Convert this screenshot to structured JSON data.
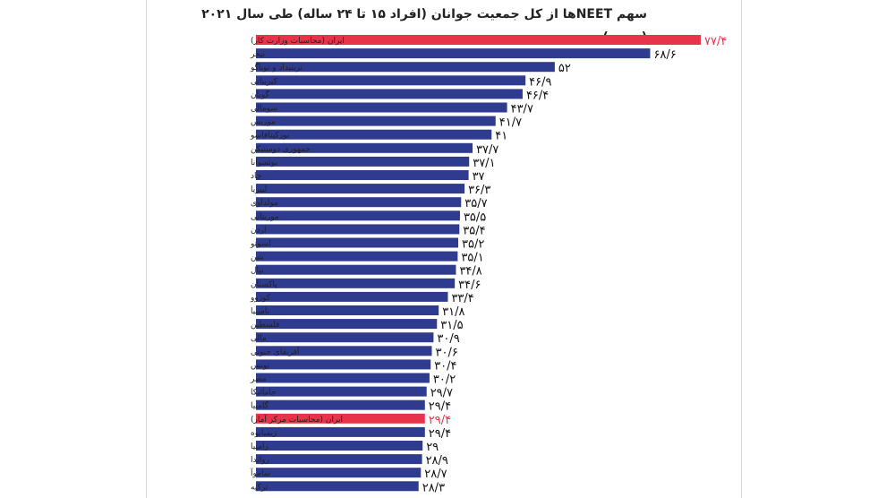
{
  "chart_data": {
    "type": "bar",
    "orientation": "horizontal",
    "title": "سهم NEETها از کل جمعیت جوانان (افراد ۱۵ تا ۲۴ ساله) طی سال ۲۰۲۱ (درصد)",
    "categories": [
      "ایران (محاسبات وزارت کار)",
      "نیجر",
      "ترینیداد و توباگو",
      "کیریباتی",
      "گویان",
      "سومالی",
      "موریس",
      "بورکینافاسو",
      "جمهوری دومینیکن",
      "بوتسوانا",
      "چاد",
      "لیبریا",
      "مولداوی",
      "موریتانی",
      "اردن",
      "لسوتو",
      "بنین",
      "نپال",
      "پاکستان",
      "کوزوو",
      "نامیبیا",
      "فلسطین",
      "مالی",
      "آفریقای جنوبی",
      "تونس",
      "مصر",
      "جامائیکا",
      "گامبیا",
      "ایران (محاسبات مرکز آمار)",
      "زیمبابوه",
      "زامبیا",
      "رواندا",
      "ساموآ",
      "ترکیه"
    ],
    "values": [
      77.4,
      68.6,
      52,
      46.9,
      46.4,
      43.7,
      41.7,
      41,
      37.7,
      37.1,
      37,
      36.3,
      35.7,
      35.5,
      35.4,
      35.2,
      35.1,
      34.8,
      34.6,
      33.4,
      31.8,
      31.5,
      30.9,
      30.6,
      30.4,
      30.2,
      29.7,
      29.4,
      29.4,
      29.4,
      29,
      28.9,
      28.7,
      28.3
    ],
    "value_labels": [
      "۷۷/۴",
      "۶۸/۶",
      "۵۲",
      "۴۶/۹",
      "۴۶/۴",
      "۴۳/۷",
      "۴۱/۷",
      "۴۱",
      "۳۷/۷",
      "۳۷/۱",
      "۳۷",
      "۳۶/۳",
      "۳۵/۷",
      "۳۵/۵",
      "۳۵/۴",
      "۳۵/۲",
      "۳۵/۱",
      "۳۴/۸",
      "۳۴/۶",
      "۳۳/۴",
      "۳۱/۸",
      "۳۱/۵",
      "۳۰/۹",
      "۳۰/۶",
      "۳۰/۴",
      "۳۰/۲",
      "۲۹/۷",
      "۲۹/۴",
      "۲۹/۴",
      "۲۹/۴",
      "۲۹",
      "۲۸/۹",
      "۲۸/۷",
      "۲۸/۳"
    ],
    "highlight_indices": [
      0,
      28
    ],
    "colors": {
      "bar": "#2e3b8f",
      "highlight": "#e8344a"
    },
    "xlim": [
      0,
      80
    ],
    "grid": false,
    "legend": "none"
  }
}
